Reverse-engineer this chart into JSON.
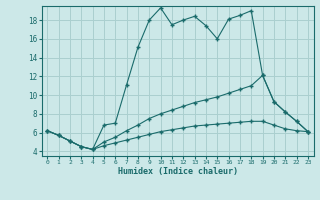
{
  "xlabel": "Humidex (Indice chaleur)",
  "bg_color": "#cce8e8",
  "grid_color": "#aacfcf",
  "line_color": "#1a6b6b",
  "xlim": [
    -0.5,
    23.5
  ],
  "ylim": [
    3.5,
    19.5
  ],
  "xticks": [
    0,
    1,
    2,
    3,
    4,
    5,
    6,
    7,
    8,
    9,
    10,
    11,
    12,
    13,
    14,
    15,
    16,
    17,
    18,
    19,
    20,
    21,
    22,
    23
  ],
  "yticks": [
    4,
    6,
    8,
    10,
    12,
    14,
    16,
    18
  ],
  "line1_x": [
    0,
    1,
    2,
    3,
    4,
    5,
    6,
    7,
    8,
    9,
    10,
    11,
    12,
    13,
    14,
    15,
    16,
    17,
    18,
    19,
    20,
    21,
    22,
    23
  ],
  "line1_y": [
    6.2,
    5.7,
    5.1,
    4.5,
    4.2,
    6.8,
    7.0,
    11.1,
    15.1,
    18.0,
    19.3,
    17.5,
    18.0,
    18.4,
    17.4,
    16.0,
    18.1,
    18.5,
    19.0,
    12.1,
    9.3,
    8.2,
    7.2,
    6.1
  ],
  "line2_x": [
    0,
    1,
    2,
    3,
    4,
    5,
    6,
    7,
    8,
    9,
    10,
    11,
    12,
    13,
    14,
    15,
    16,
    17,
    18,
    19,
    20,
    21,
    22,
    23
  ],
  "line2_y": [
    6.2,
    5.7,
    5.1,
    4.5,
    4.2,
    5.0,
    5.5,
    6.2,
    6.8,
    7.5,
    8.0,
    8.4,
    8.8,
    9.2,
    9.5,
    9.8,
    10.2,
    10.6,
    11.0,
    12.1,
    9.3,
    8.2,
    7.2,
    6.1
  ],
  "line3_x": [
    0,
    1,
    2,
    3,
    4,
    5,
    6,
    7,
    8,
    9,
    10,
    11,
    12,
    13,
    14,
    15,
    16,
    17,
    18,
    19,
    20,
    21,
    22,
    23
  ],
  "line3_y": [
    6.2,
    5.7,
    5.1,
    4.5,
    4.2,
    4.6,
    4.9,
    5.2,
    5.5,
    5.8,
    6.1,
    6.3,
    6.5,
    6.7,
    6.8,
    6.9,
    7.0,
    7.1,
    7.2,
    7.2,
    6.8,
    6.4,
    6.2,
    6.1
  ]
}
